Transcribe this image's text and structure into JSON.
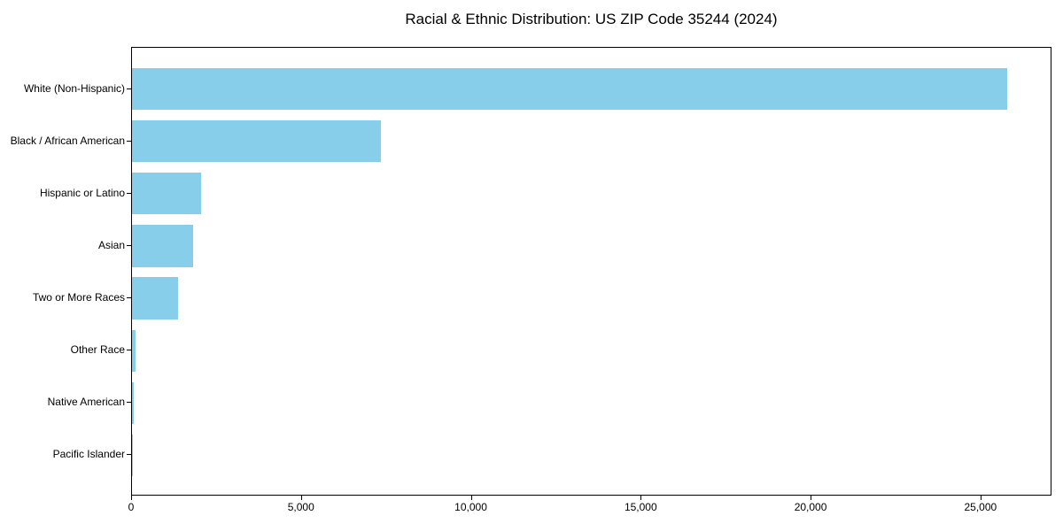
{
  "title": "Racial & Ethnic Distribution: US ZIP Code 35244 (2024)",
  "chart_data": {
    "type": "bar",
    "orientation": "horizontal",
    "title": "Racial & Ethnic Distribution: US ZIP Code 35244 (2024)",
    "categories": [
      "White (Non-Hispanic)",
      "Black / African American",
      "Hispanic or Latino",
      "Asian",
      "Two or More Races",
      "Other Race",
      "Native American",
      "Pacific Islander"
    ],
    "values": [
      25760,
      7330,
      2030,
      1800,
      1360,
      100,
      40,
      10
    ],
    "x_ticks": [
      0,
      5000,
      10000,
      15000,
      20000,
      25000
    ],
    "x_tick_labels": [
      "0",
      "5,000",
      "10,000",
      "15,000",
      "20,000",
      "25,000"
    ],
    "xlim": [
      0,
      27090
    ],
    "xlabel": "",
    "ylabel": "",
    "bar_color": "#87CEEB",
    "background_color": "#ffffff",
    "axis_color": "#000000",
    "text_color": "#000000",
    "grid": false,
    "legend": null
  }
}
